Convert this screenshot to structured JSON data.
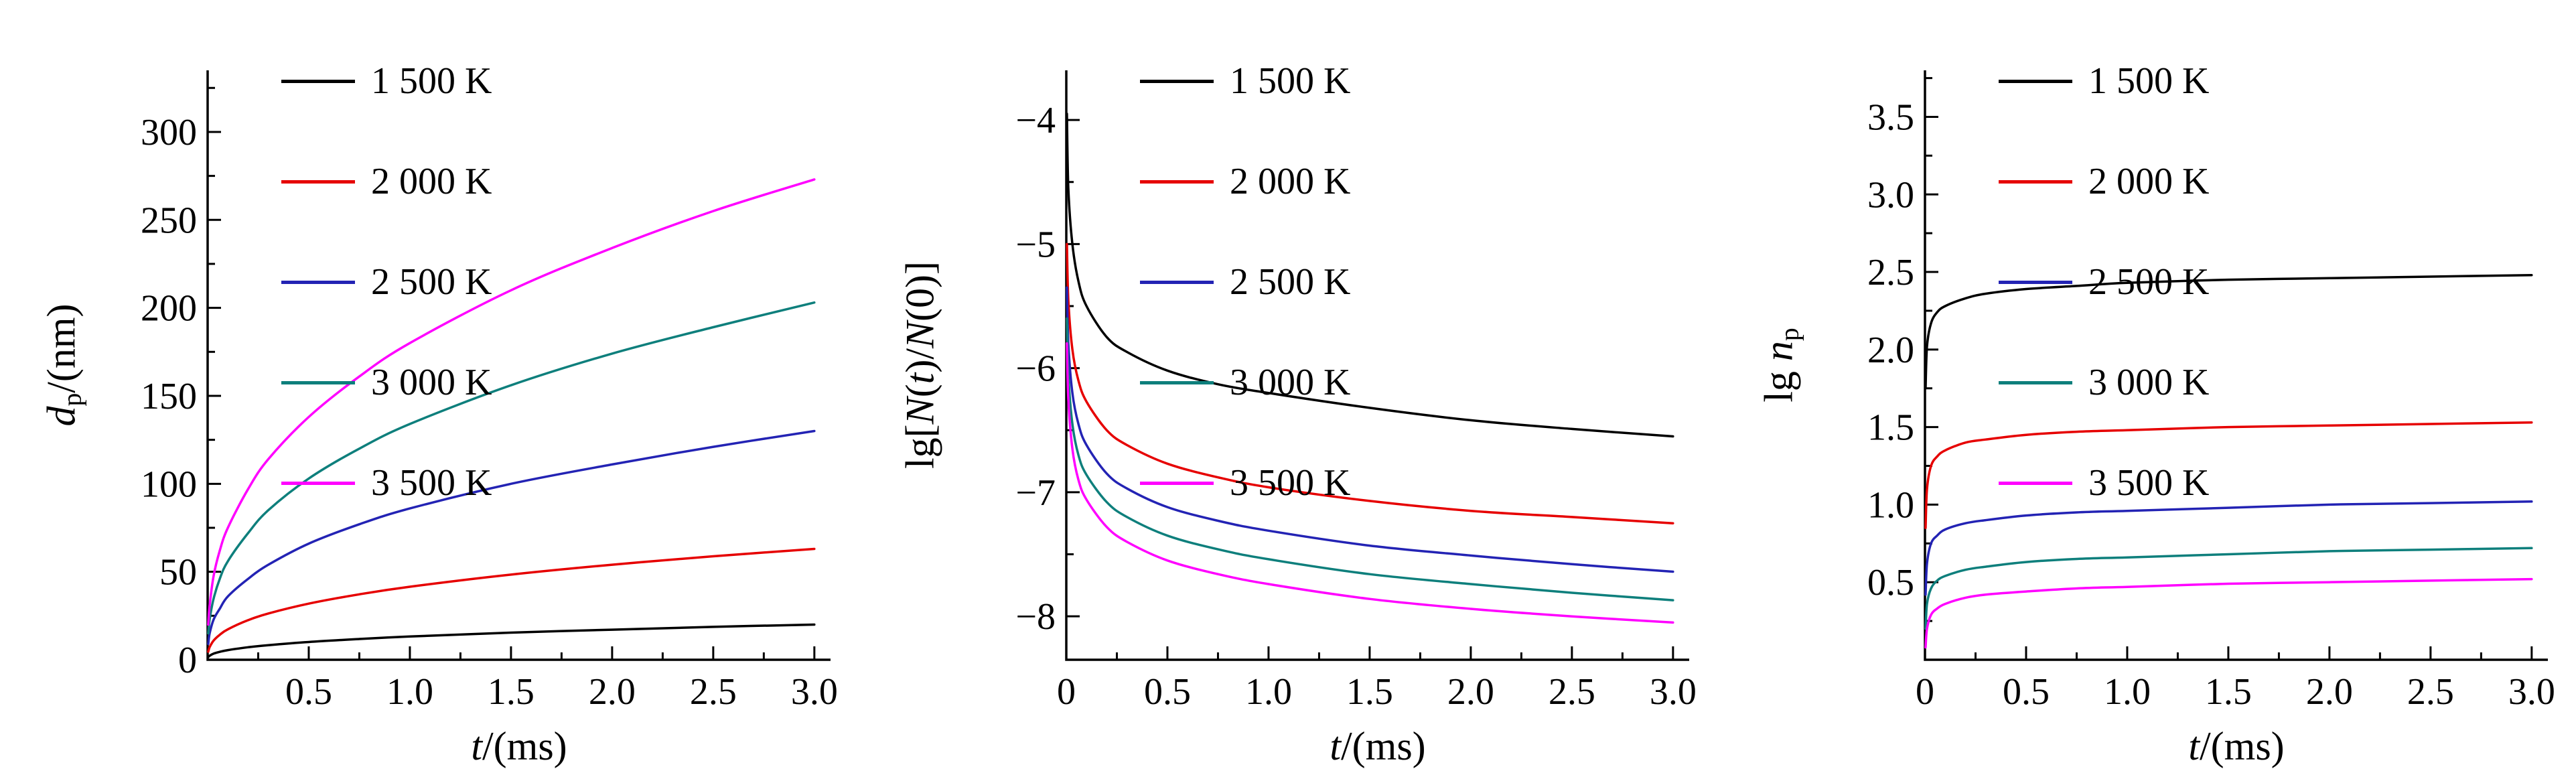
{
  "figure": {
    "background": "#ffffff"
  },
  "legend": {
    "labels": [
      "1 500 K",
      "2 000 K",
      "2 500 K",
      "3 000 K",
      "3 500 K"
    ],
    "colors": [
      "#000000",
      "#e60000",
      "#2323b4",
      "#0e7f7c",
      "#ff00ff"
    ]
  },
  "chart_data": [
    {
      "type": "line",
      "title": "",
      "xlabel": "t/(ms)",
      "ylabel": "dp/(nm)",
      "xlabel_parts": [
        {
          "t": "t",
          "i": 1
        },
        {
          "t": "/(ms)"
        }
      ],
      "ylabel_parts": [
        {
          "t": "d",
          "i": 1
        },
        {
          "t": "p",
          "s": 1
        },
        {
          "t": "/(nm)"
        }
      ],
      "xlim": [
        0,
        3.08
      ],
      "ylim": [
        0,
        335
      ],
      "grid": false,
      "legend_position": "top-left",
      "minor_x": 0.25,
      "minor_y": 25,
      "xticks": [
        {
          "v": 0.5,
          "l": "0.5"
        },
        {
          "v": 1.0,
          "l": "1.0"
        },
        {
          "v": 1.5,
          "l": "1.5"
        },
        {
          "v": 2.0,
          "l": "2.0"
        },
        {
          "v": 2.5,
          "l": "2.5"
        },
        {
          "v": 3.0,
          "l": "3.0"
        }
      ],
      "yticks": [
        {
          "v": 0,
          "l": "0"
        },
        {
          "v": 50,
          "l": "50"
        },
        {
          "v": 100,
          "l": "100"
        },
        {
          "v": 150,
          "l": "150"
        },
        {
          "v": 200,
          "l": "200"
        },
        {
          "v": 250,
          "l": "250"
        },
        {
          "v": 300,
          "l": "300"
        }
      ],
      "x": [
        0.003,
        0.01,
        0.03,
        0.06,
        0.1,
        0.2,
        0.3,
        0.5,
        0.75,
        1.0,
        1.5,
        2.0,
        2.5,
        3.0
      ],
      "series": [
        {
          "name": "1 500 K",
          "color": "#000000",
          "values": [
            1.5,
            2.3,
            3.5,
            4.5,
            5.5,
            7.1,
            8.3,
            10.1,
            11.8,
            13.2,
            15.4,
            17.1,
            18.7,
            20
          ]
        },
        {
          "name": "2 000 K",
          "color": "#e60000",
          "values": [
            4.6,
            7.2,
            11,
            14.2,
            17.3,
            22.5,
            26.3,
            31.9,
            37.2,
            41.5,
            48.4,
            54,
            58.8,
            63
          ]
        },
        {
          "name": "2 500 K",
          "color": "#2323b4",
          "values": [
            9,
            15,
            23,
            29,
            36,
            46,
            54,
            66,
            77,
            86,
            100,
            111,
            121,
            130
          ]
        },
        {
          "name": "3 000 K",
          "color": "#0e7f7c",
          "values": [
            15,
            23,
            35,
            46,
            56,
            72,
            85,
            103,
            120,
            134,
            156,
            174,
            189,
            203
          ]
        },
        {
          "name": "3 500 K",
          "color": "#ff00ff",
          "values": [
            20,
            31,
            48,
            62,
            75,
            97,
            114,
            138,
            161,
            180,
            210,
            234,
            255,
            273
          ]
        }
      ]
    },
    {
      "type": "line",
      "title": "",
      "xlabel": "t/(ms)",
      "ylabel": "lg[N(t)/N(0)]",
      "xlabel_parts": [
        {
          "t": "t",
          "i": 1
        },
        {
          "t": "/(ms)"
        }
      ],
      "ylabel_parts": [
        {
          "t": "lg["
        },
        {
          "t": "N",
          "i": 1
        },
        {
          "t": "("
        },
        {
          "t": "t",
          "i": 1
        },
        {
          "t": ")/"
        },
        {
          "t": "N",
          "i": 1
        },
        {
          "t": "(0)]"
        }
      ],
      "xlim": [
        0,
        3.08
      ],
      "ylim": [
        -8.35,
        -3.6
      ],
      "grid": false,
      "legend_position": "top-left",
      "minor_x": 0.25,
      "minor_y": 0.5,
      "xticks": [
        {
          "v": 0,
          "l": "0"
        },
        {
          "v": 0.5,
          "l": "0.5"
        },
        {
          "v": 1.0,
          "l": "1.0"
        },
        {
          "v": 1.5,
          "l": "1.5"
        },
        {
          "v": 2.0,
          "l": "2.0"
        },
        {
          "v": 2.5,
          "l": "2.5"
        },
        {
          "v": 3.0,
          "l": "3.0"
        }
      ],
      "yticks": [
        {
          "v": -8,
          "l": "−8"
        },
        {
          "v": -7,
          "l": "−7"
        },
        {
          "v": -6,
          "l": "−6"
        },
        {
          "v": -5,
          "l": "−5"
        },
        {
          "v": -4,
          "l": "−4"
        }
      ],
      "x": [
        0.003,
        0.01,
        0.03,
        0.06,
        0.1,
        0.2,
        0.3,
        0.5,
        0.75,
        1.0,
        1.5,
        2.0,
        2.5,
        3.0
      ],
      "series": [
        {
          "name": "1 500 K",
          "color": "#000000",
          "values": [
            -3.95,
            -4.55,
            -5.0,
            -5.3,
            -5.5,
            -5.75,
            -5.87,
            -6.02,
            -6.13,
            -6.2,
            -6.32,
            -6.42,
            -6.49,
            -6.55
          ]
        },
        {
          "name": "2 000 K",
          "color": "#e60000",
          "values": [
            -5.0,
            -5.45,
            -5.85,
            -6.1,
            -6.27,
            -6.5,
            -6.62,
            -6.77,
            -6.88,
            -6.96,
            -7.07,
            -7.15,
            -7.2,
            -7.25
          ]
        },
        {
          "name": "2 500 K",
          "color": "#2323b4",
          "values": [
            -5.35,
            -5.8,
            -6.2,
            -6.45,
            -6.62,
            -6.85,
            -6.97,
            -7.12,
            -7.23,
            -7.31,
            -7.43,
            -7.51,
            -7.58,
            -7.64
          ]
        },
        {
          "name": "3 000 K",
          "color": "#0e7f7c",
          "values": [
            -5.6,
            -6.05,
            -6.45,
            -6.7,
            -6.86,
            -7.08,
            -7.2,
            -7.35,
            -7.46,
            -7.54,
            -7.66,
            -7.74,
            -7.81,
            -7.87
          ]
        },
        {
          "name": "3 500 K",
          "color": "#ff00ff",
          "values": [
            -5.8,
            -6.25,
            -6.65,
            -6.9,
            -7.06,
            -7.28,
            -7.4,
            -7.55,
            -7.66,
            -7.74,
            -7.86,
            -7.94,
            -8.0,
            -8.05
          ]
        }
      ]
    },
    {
      "type": "line",
      "title": "",
      "xlabel": "t/(ms)",
      "ylabel": "lg np",
      "xlabel_parts": [
        {
          "t": "t",
          "i": 1
        },
        {
          "t": "/(ms)"
        }
      ],
      "ylabel_parts": [
        {
          "t": "lg "
        },
        {
          "t": "n",
          "i": 1
        },
        {
          "t": "p",
          "s": 1
        }
      ],
      "xlim": [
        0,
        3.08
      ],
      "ylim": [
        0,
        3.8
      ],
      "grid": false,
      "legend_position": "top-left",
      "minor_x": 0.25,
      "minor_y": 0.25,
      "xticks": [
        {
          "v": 0,
          "l": "0"
        },
        {
          "v": 0.5,
          "l": "0.5"
        },
        {
          "v": 1.0,
          "l": "1.0"
        },
        {
          "v": 1.5,
          "l": "1.5"
        },
        {
          "v": 2.0,
          "l": "2.0"
        },
        {
          "v": 2.5,
          "l": "2.5"
        },
        {
          "v": 3.0,
          "l": "3.0"
        }
      ],
      "yticks": [
        {
          "v": 0.5,
          "l": "0.5"
        },
        {
          "v": 1.0,
          "l": "1.0"
        },
        {
          "v": 1.5,
          "l": "1.5"
        },
        {
          "v": 2.0,
          "l": "2.0"
        },
        {
          "v": 2.5,
          "l": "2.5"
        },
        {
          "v": 3.0,
          "l": "3.0"
        },
        {
          "v": 3.5,
          "l": "3.5"
        }
      ],
      "x": [
        0.003,
        0.01,
        0.03,
        0.06,
        0.1,
        0.2,
        0.3,
        0.5,
        0.75,
        1.0,
        1.5,
        2.0,
        2.5,
        3.0
      ],
      "series": [
        {
          "name": "1 500 K",
          "color": "#000000",
          "values": [
            1.75,
            2.02,
            2.17,
            2.24,
            2.28,
            2.33,
            2.36,
            2.39,
            2.41,
            2.43,
            2.45,
            2.46,
            2.47,
            2.48
          ]
        },
        {
          "name": "2 000 K",
          "color": "#e60000",
          "values": [
            0.85,
            1.1,
            1.25,
            1.31,
            1.35,
            1.4,
            1.42,
            1.45,
            1.47,
            1.48,
            1.5,
            1.51,
            1.52,
            1.53
          ]
        },
        {
          "name": "2 500 K",
          "color": "#2323b4",
          "values": [
            0.42,
            0.62,
            0.75,
            0.8,
            0.84,
            0.88,
            0.9,
            0.93,
            0.95,
            0.96,
            0.98,
            1.0,
            1.01,
            1.02
          ]
        },
        {
          "name": "3 000 K",
          "color": "#0e7f7c",
          "values": [
            0.2,
            0.36,
            0.46,
            0.51,
            0.54,
            0.58,
            0.6,
            0.63,
            0.65,
            0.66,
            0.68,
            0.7,
            0.71,
            0.72
          ]
        },
        {
          "name": "3 500 K",
          "color": "#ff00ff",
          "values": [
            0.08,
            0.2,
            0.29,
            0.33,
            0.36,
            0.4,
            0.42,
            0.44,
            0.46,
            0.47,
            0.49,
            0.5,
            0.51,
            0.52
          ]
        }
      ]
    }
  ]
}
